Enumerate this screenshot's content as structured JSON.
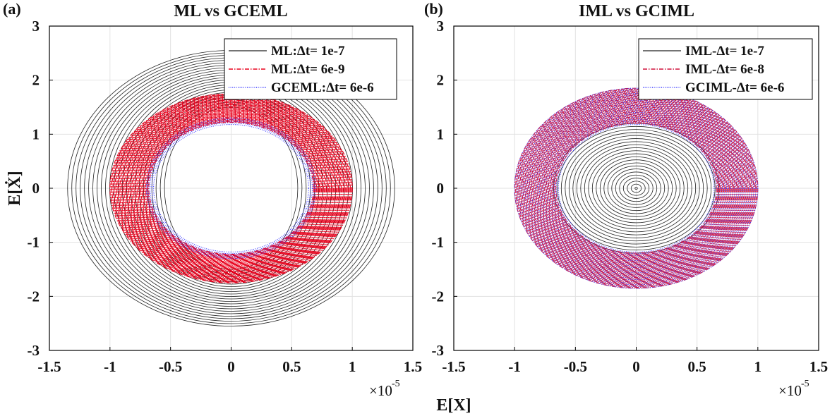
{
  "figure": {
    "xlabel": "E[X]",
    "ylabel": "E[Ẋ]",
    "x_exponent_label": "×10",
    "x_exponent_power": "-5"
  },
  "chart_data": [
    {
      "type": "line",
      "panel_label": "(a)",
      "title": "ML vs GCEML",
      "xlabel": "",
      "ylabel": "E[Ẋ]",
      "xlim": [
        -1.5e-05,
        1.5e-05
      ],
      "ylim": [
        -3,
        3
      ],
      "x_ticks": [
        -1.5,
        -1,
        -0.5,
        0,
        0.5,
        1,
        1.5
      ],
      "x_tick_labels": [
        "-1.5",
        "-1",
        "-0.5",
        "0",
        "0.5",
        "1",
        "1.5"
      ],
      "y_ticks": [
        -3,
        -2,
        -1,
        0,
        1,
        2,
        3
      ],
      "y_tick_labels": [
        "-3",
        "-2",
        "-1",
        "0",
        "1",
        "2",
        "3"
      ],
      "x_scale_note": "×10^-5",
      "grid": true,
      "legend_position": "top-right",
      "series": [
        {
          "name": "ML:Δt= 1e-7",
          "color": "#222222",
          "style": "solid",
          "x_center": 0,
          "y_center": 0,
          "x_radius_range": [
            5.5e-06,
            1.35e-05
          ],
          "y_radius_range": [
            1.5,
            2.55
          ],
          "loops": 24
        },
        {
          "name": "ML:Δt= 6e-9",
          "color": "#e8001c",
          "style": "dash-dot",
          "x_center": 0,
          "y_center": 0,
          "x_radius_range": [
            6.8e-06,
            1e-05
          ],
          "y_radius_range": [
            1.22,
            1.75
          ],
          "loops": 40
        },
        {
          "name": "GCEML:Δt= 6e-6",
          "color": "#3a3aff",
          "style": "dotted",
          "x_center": 0,
          "y_center": 0,
          "x_radius_range": [
            6.4e-06,
            7e-06
          ],
          "y_radius_range": [
            1.18,
            1.3
          ],
          "loops": 5
        }
      ]
    },
    {
      "type": "line",
      "panel_label": "(b)",
      "title": "IML vs GCIML",
      "xlabel": "E[X]",
      "ylabel": "",
      "xlim": [
        -1.5e-05,
        1.5e-05
      ],
      "ylim": [
        -3,
        3
      ],
      "x_ticks": [
        -1.5,
        -1,
        -0.5,
        0,
        0.5,
        1,
        1.5
      ],
      "x_tick_labels": [
        "-1.5",
        "-1",
        "-0.5",
        "0",
        "0.5",
        "1",
        "1.5"
      ],
      "y_ticks": [
        -3,
        -2,
        -1,
        0,
        1,
        2,
        3
      ],
      "y_tick_labels": [
        "-3",
        "-2",
        "-1",
        "0",
        "1",
        "2",
        "3"
      ],
      "x_scale_note": "×10^-5",
      "grid": true,
      "legend_position": "top-right",
      "series": [
        {
          "name": "IML-Δt= 1e-7",
          "color": "#222222",
          "style": "solid",
          "x_center": 0,
          "y_center": 0,
          "x_radius_range": [
            1e-07,
            6.8e-06
          ],
          "y_radius_range": [
            0.02,
            1.2
          ],
          "loops": 22
        },
        {
          "name": "IML-Δt= 6e-8",
          "color": "#d0103a",
          "style": "dash-dot",
          "x_center": 0,
          "y_center": 0,
          "x_radius_range": [
            6.6e-06,
            1e-05
          ],
          "y_radius_range": [
            1.2,
            1.85
          ],
          "loops": 40
        },
        {
          "name": "GCIML-Δt= 6e-6",
          "color": "#3a3aff",
          "style": "dotted",
          "x_center": 0,
          "y_center": 0,
          "x_radius_range": [
            6.4e-06,
            1e-05
          ],
          "y_radius_range": [
            1.18,
            1.85
          ],
          "loops": 22
        }
      ]
    }
  ]
}
